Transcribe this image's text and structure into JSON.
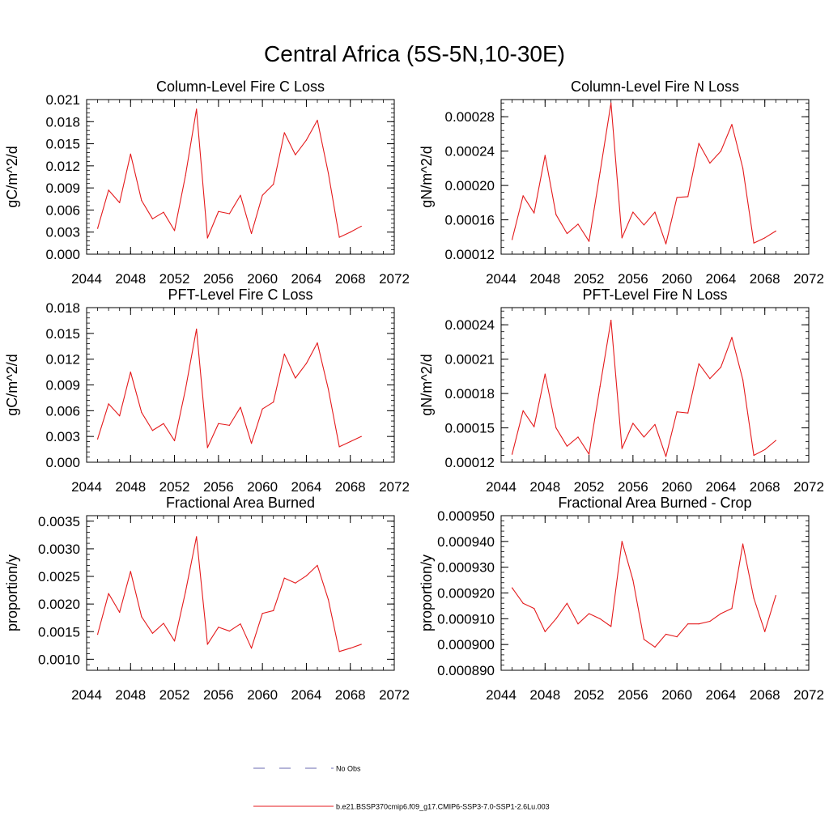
{
  "page_title": "Central Africa (5S-5N,10-30E)",
  "legend": {
    "items": [
      {
        "label": "No Obs",
        "style": "dashed",
        "color": "#6a6ab0"
      },
      {
        "label": "b.e21.BSSP370cmip6.f09_g17.CMIP6-SSP3-7.0-SSP1-2.6Lu.003",
        "style": "solid",
        "color": "#e41a1c"
      }
    ]
  },
  "chart_data": [
    {
      "type": "line",
      "title": "Column-Level Fire C Loss",
      "ylabel": "gC/m^2/d",
      "xlim": [
        2044,
        2072
      ],
      "xticks": [
        2044,
        2048,
        2052,
        2056,
        2060,
        2064,
        2068,
        2072
      ],
      "ylim": [
        0.0,
        0.021
      ],
      "yticks": [
        "0.000",
        "0.003",
        "0.006",
        "0.009",
        "0.012",
        "0.015",
        "0.018",
        "0.021"
      ],
      "series": [
        {
          "color": "#e41a1c",
          "x": [
            2045,
            2046,
            2047,
            2048,
            2049,
            2050,
            2051,
            2052,
            2053,
            2054,
            2055,
            2056,
            2057,
            2058,
            2059,
            2060,
            2061,
            2062,
            2063,
            2064,
            2065,
            2066,
            2067,
            2068,
            2069
          ],
          "y": [
            0.0035,
            0.0087,
            0.007,
            0.0136,
            0.0073,
            0.0048,
            0.0057,
            0.0032,
            0.0107,
            0.0197,
            0.0022,
            0.0058,
            0.0055,
            0.008,
            0.0028,
            0.008,
            0.0095,
            0.0165,
            0.0135,
            0.0155,
            0.0182,
            0.011,
            0.0023,
            0.003,
            0.0038
          ]
        }
      ]
    },
    {
      "type": "line",
      "title": "Column-Level Fire N Loss",
      "ylabel": "gN/m^2/d",
      "xlim": [
        2044,
        2072
      ],
      "xticks": [
        2044,
        2048,
        2052,
        2056,
        2060,
        2064,
        2068,
        2072
      ],
      "ylim": [
        0.00012,
        0.0003
      ],
      "yticks": [
        "0.00012",
        "0.00016",
        "0.00020",
        "0.00024",
        "0.00028"
      ],
      "series": [
        {
          "color": "#e41a1c",
          "x": [
            2045,
            2046,
            2047,
            2048,
            2049,
            2050,
            2051,
            2052,
            2053,
            2054,
            2055,
            2056,
            2057,
            2058,
            2059,
            2060,
            2061,
            2062,
            2063,
            2064,
            2065,
            2066,
            2067,
            2068,
            2069
          ],
          "y": [
            0.000137,
            0.000188,
            0.000168,
            0.000235,
            0.000166,
            0.000144,
            0.000155,
            0.000135,
            0.000215,
            0.000296,
            0.000139,
            0.000169,
            0.000154,
            0.000169,
            0.000132,
            0.000186,
            0.000187,
            0.000249,
            0.000226,
            0.00024,
            0.000271,
            0.00022,
            0.000133,
            0.000139,
            0.000147
          ]
        }
      ]
    },
    {
      "type": "line",
      "title": "PFT-Level Fire C Loss",
      "ylabel": "gC/m^2/d",
      "xlim": [
        2044,
        2072
      ],
      "xticks": [
        2044,
        2048,
        2052,
        2056,
        2060,
        2064,
        2068,
        2072
      ],
      "ylim": [
        0.0,
        0.018
      ],
      "yticks": [
        "0.000",
        "0.003",
        "0.006",
        "0.009",
        "0.012",
        "0.015",
        "0.018"
      ],
      "series": [
        {
          "color": "#e41a1c",
          "x": [
            2045,
            2046,
            2047,
            2048,
            2049,
            2050,
            2051,
            2052,
            2053,
            2054,
            2055,
            2056,
            2057,
            2058,
            2059,
            2060,
            2061,
            2062,
            2063,
            2064,
            2065,
            2066,
            2067,
            2068,
            2069
          ],
          "y": [
            0.0027,
            0.0068,
            0.0054,
            0.0105,
            0.0058,
            0.0037,
            0.0045,
            0.0025,
            0.0085,
            0.0155,
            0.0017,
            0.0045,
            0.0043,
            0.0064,
            0.0022,
            0.0062,
            0.007,
            0.0126,
            0.0098,
            0.0115,
            0.0139,
            0.0085,
            0.0018,
            0.0024,
            0.003
          ]
        }
      ]
    },
    {
      "type": "line",
      "title": "PFT-Level Fire N Loss",
      "ylabel": "gN/m^2/d",
      "xlim": [
        2044,
        2072
      ],
      "xticks": [
        2044,
        2048,
        2052,
        2056,
        2060,
        2064,
        2068,
        2072
      ],
      "ylim": [
        0.00012,
        0.000255
      ],
      "yticks": [
        "0.00012",
        "0.00015",
        "0.00018",
        "0.00021",
        "0.00024"
      ],
      "series": [
        {
          "color": "#e41a1c",
          "x": [
            2045,
            2046,
            2047,
            2048,
            2049,
            2050,
            2051,
            2052,
            2053,
            2054,
            2055,
            2056,
            2057,
            2058,
            2059,
            2060,
            2061,
            2062,
            2063,
            2064,
            2065,
            2066,
            2067,
            2068,
            2069
          ],
          "y": [
            0.000127,
            0.000165,
            0.000151,
            0.000197,
            0.00015,
            0.000134,
            0.000142,
            0.000127,
            0.000186,
            0.000244,
            0.000132,
            0.000154,
            0.000142,
            0.000153,
            0.000125,
            0.000164,
            0.000163,
            0.000206,
            0.000193,
            0.000203,
            0.000229,
            0.000192,
            0.000126,
            0.000131,
            0.000139
          ]
        }
      ]
    },
    {
      "type": "line",
      "title": "Fractional Area Burned",
      "ylabel": "proportion/y",
      "xlim": [
        2044,
        2072
      ],
      "xticks": [
        2044,
        2048,
        2052,
        2056,
        2060,
        2064,
        2068,
        2072
      ],
      "ylim": [
        0.0008,
        0.0036
      ],
      "yticks": [
        "0.0010",
        "0.0015",
        "0.0020",
        "0.0025",
        "0.0030",
        "0.0035"
      ],
      "series": [
        {
          "color": "#e41a1c",
          "x": [
            2045,
            2046,
            2047,
            2048,
            2049,
            2050,
            2051,
            2052,
            2053,
            2054,
            2055,
            2056,
            2057,
            2058,
            2059,
            2060,
            2061,
            2062,
            2063,
            2064,
            2065,
            2066,
            2067,
            2068,
            2069
          ],
          "y": [
            0.00145,
            0.00219,
            0.00185,
            0.00259,
            0.00177,
            0.00147,
            0.00165,
            0.00133,
            0.00222,
            0.00322,
            0.00127,
            0.00158,
            0.00151,
            0.00164,
            0.0012,
            0.00183,
            0.00188,
            0.00247,
            0.00238,
            0.00251,
            0.0027,
            0.00208,
            0.00114,
            0.0012,
            0.00127
          ]
        }
      ]
    },
    {
      "type": "line",
      "title": "Fractional Area Burned - Crop",
      "ylabel": "proportion/y",
      "xlim": [
        2044,
        2072
      ],
      "xticks": [
        2044,
        2048,
        2052,
        2056,
        2060,
        2064,
        2068,
        2072
      ],
      "ylim": [
        0.00089,
        0.00095
      ],
      "yticks": [
        "0.000890",
        "0.000900",
        "0.000910",
        "0.000920",
        "0.000930",
        "0.000940",
        "0.000950"
      ],
      "series": [
        {
          "color": "#e41a1c",
          "x": [
            2045,
            2046,
            2047,
            2048,
            2049,
            2050,
            2051,
            2052,
            2053,
            2054,
            2055,
            2056,
            2057,
            2058,
            2059,
            2060,
            2061,
            2062,
            2063,
            2064,
            2065,
            2066,
            2067,
            2068,
            2069
          ],
          "y": [
            0.000922,
            0.000916,
            0.000914,
            0.000905,
            0.00091,
            0.000916,
            0.000908,
            0.000912,
            0.00091,
            0.000907,
            0.00094,
            0.000925,
            0.000902,
            0.000899,
            0.000904,
            0.000903,
            0.000908,
            0.000908,
            0.000909,
            0.000912,
            0.000914,
            0.000939,
            0.000918,
            0.000905,
            0.000919
          ]
        }
      ]
    }
  ]
}
